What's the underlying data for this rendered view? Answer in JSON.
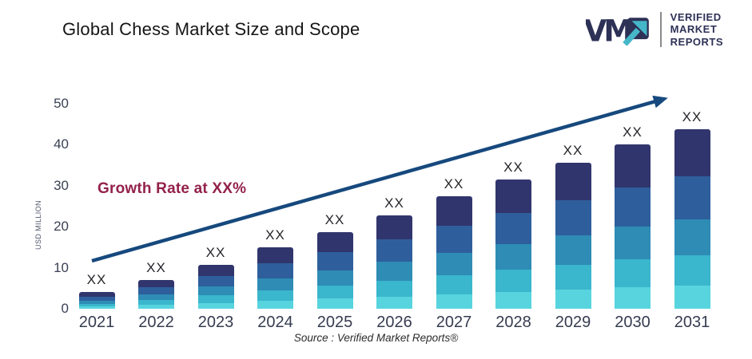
{
  "header": {
    "title": "Global Chess Market Size and Scope"
  },
  "logo": {
    "mark": "VM",
    "lines": [
      "VERIFIED",
      "MARKET",
      "REPORTS"
    ],
    "navy": "#2d3156",
    "teal": "#45b7c8"
  },
  "source_text": "Source :  Verified Market Reports®",
  "colors": {
    "arrow": "#16497d",
    "growth_label": "#93214a",
    "axis_text": "#3a4154"
  },
  "chart_data": {
    "type": "bar",
    "stacked": true,
    "title": "Global Chess Market Size and Scope",
    "ylabel": "USD MILLION",
    "xlabel": "",
    "ylim": [
      0,
      50
    ],
    "yticks": [
      0,
      10,
      20,
      30,
      40,
      50
    ],
    "grid": false,
    "legend": false,
    "categories": [
      "2021",
      "2022",
      "2023",
      "2024",
      "2025",
      "2026",
      "2027",
      "2028",
      "2029",
      "2030",
      "2031"
    ],
    "values": [
      4,
      7,
      10.7,
      14.9,
      18.7,
      22.8,
      27.4,
      31.5,
      35.7,
      40,
      43.7
    ],
    "bar_value_label": "XX",
    "segment_colors_bottom_to_top": [
      "#58d4de",
      "#3ab6cd",
      "#2e8cb5",
      "#2e5f9c",
      "#31356d"
    ],
    "segment_proportions_bottom_to_top": [
      0.13,
      0.17,
      0.2,
      0.24,
      0.26
    ],
    "annotations": {
      "growth_label": "Growth Rate at XX%"
    },
    "trend_arrow": {
      "present": true,
      "color": "#16497d"
    }
  }
}
